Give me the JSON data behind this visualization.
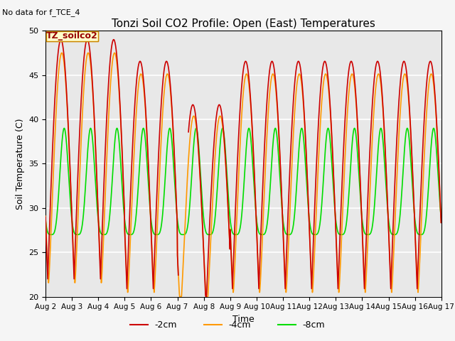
{
  "title": "Tonzi Soil CO2 Profile: Open (East) Temperatures",
  "no_data_text": "No data for f_TCE_4",
  "ylabel": "Soil Temperature (C)",
  "xlabel": "Time",
  "legend_title": "TZ_soilco2",
  "ylim": [
    20,
    50
  ],
  "background_color": "#e8e8e8",
  "line_colors": {
    "2cm": "#cc0000",
    "4cm": "#ff9900",
    "8cm": "#00dd00"
  },
  "xtick_labels": [
    "Aug 2",
    "Aug 3",
    "Aug 4",
    "Aug 5",
    "Aug 6",
    "Aug 7",
    "Aug 8",
    "Aug 9",
    "Aug 10",
    "Aug 11",
    "Aug 12",
    "Aug 13",
    "Aug 14",
    "Aug 15",
    "Aug 16",
    "Aug 17"
  ],
  "grid_color": "#d0d0d0",
  "yticks": [
    20,
    25,
    30,
    35,
    40,
    45,
    50
  ]
}
